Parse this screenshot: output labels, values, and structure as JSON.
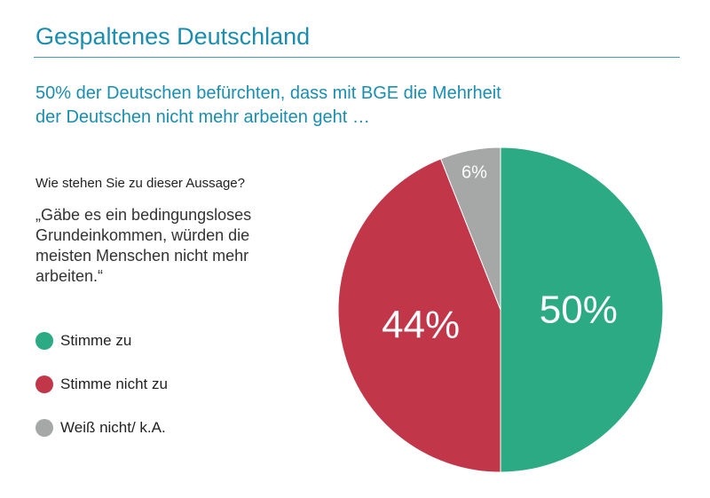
{
  "title": "Gespaltenes Deutschland",
  "subtitle_lines": [
    "50% der Deutschen befürchten, dass mit BGE die Mehrheit",
    "der Deutschen nicht mehr arbeiten geht …"
  ],
  "question": "Wie stehen Sie zu dieser Aussage?",
  "statement_lines": [
    "„Gäbe es ein bedingungsloses",
    "Grundeinkommen, würden die",
    "meisten Menschen nicht mehr",
    "arbeiten.“"
  ],
  "colors": {
    "accent": "#1a8db0",
    "agree": "#2baa83",
    "disagree": "#c23649",
    "unknown": "#a5a8a6"
  },
  "chart_data": {
    "type": "pie",
    "slices": [
      {
        "label": "Stimme zu",
        "value": 50,
        "value_label": "50%",
        "color": "#2baa83"
      },
      {
        "label": "Stimme nicht zu",
        "value": 44,
        "value_label": "44%",
        "color": "#c23649"
      },
      {
        "label": "Weiß nicht/ k.A.",
        "value": 6,
        "value_label": "6%",
        "color": "#a5a8a6"
      }
    ],
    "start_angle": "12 o'clock",
    "direction": "clockwise",
    "legend_placement": "left"
  }
}
